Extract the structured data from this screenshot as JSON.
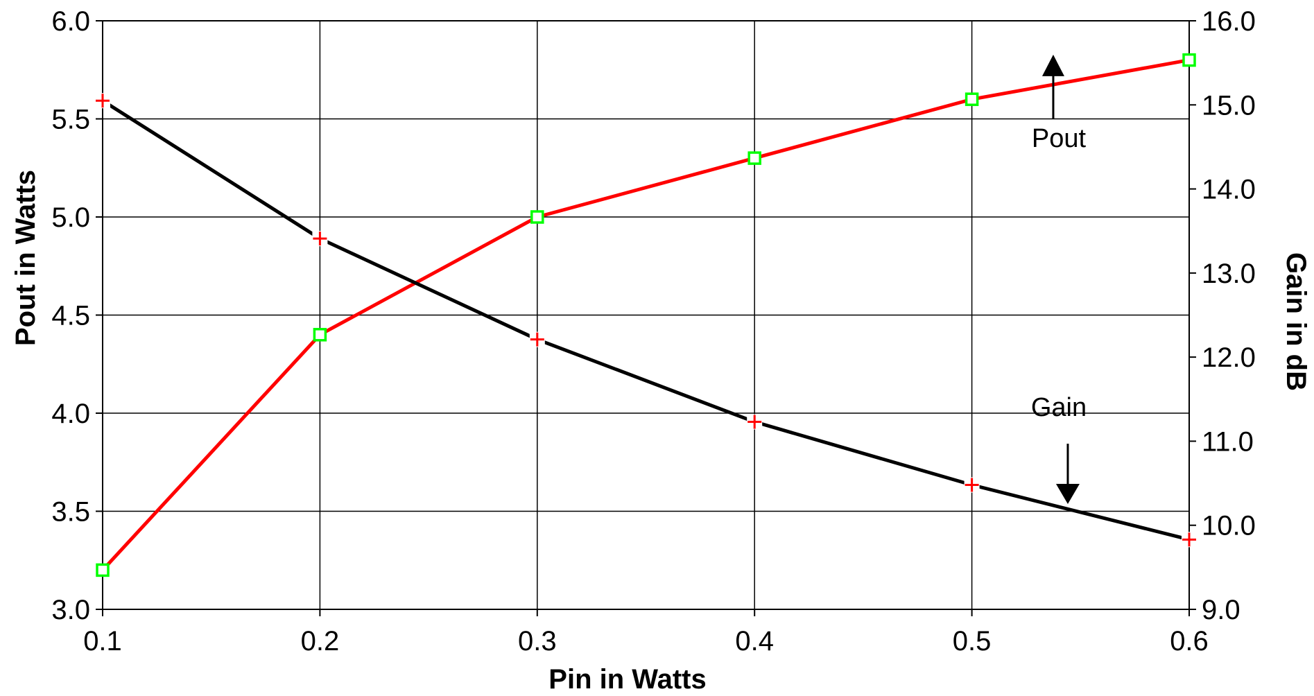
{
  "chart_data": {
    "type": "line",
    "xlabel": "Pin in Watts",
    "ylabel_left": "Pout in Watts",
    "ylabel_right": "Gain in dB",
    "x": [
      0.1,
      0.2,
      0.3,
      0.4,
      0.5,
      0.6
    ],
    "x_ticks": [
      "0.1",
      "0.2",
      "0.3",
      "0.4",
      "0.5",
      "0.6"
    ],
    "xlim": [
      0.1,
      0.6
    ],
    "ylim_left": [
      3.0,
      6.0
    ],
    "y_left_ticks": [
      "3.0",
      "3.5",
      "4.0",
      "4.5",
      "5.0",
      "5.5",
      "6.0"
    ],
    "ylim_right": [
      9.0,
      16.0
    ],
    "y_right_ticks": [
      "9.0",
      "10.0",
      "11.0",
      "12.0",
      "13.0",
      "14.0",
      "15.0",
      "16.0"
    ],
    "grid": true,
    "legend": "none",
    "series": [
      {
        "name": "Pout",
        "axis": "left",
        "values": [
          3.2,
          4.4,
          5.0,
          5.3,
          5.6,
          5.8
        ],
        "line_color": "#ff0000",
        "marker": "square",
        "marker_color": "#00ff00"
      },
      {
        "name": "Gain",
        "axis": "right",
        "values": [
          15.05,
          13.41,
          12.21,
          11.23,
          10.48,
          9.83
        ],
        "line_color": "#000000",
        "marker": "plus",
        "marker_color": "#ff0000"
      }
    ],
    "annotations": [
      {
        "text": "Pout",
        "arrow": "up",
        "x": 0.54,
        "y_right": 14.5
      },
      {
        "text": "Gain",
        "arrow": "down",
        "x": 0.54,
        "y_right": 11.3
      }
    ]
  }
}
